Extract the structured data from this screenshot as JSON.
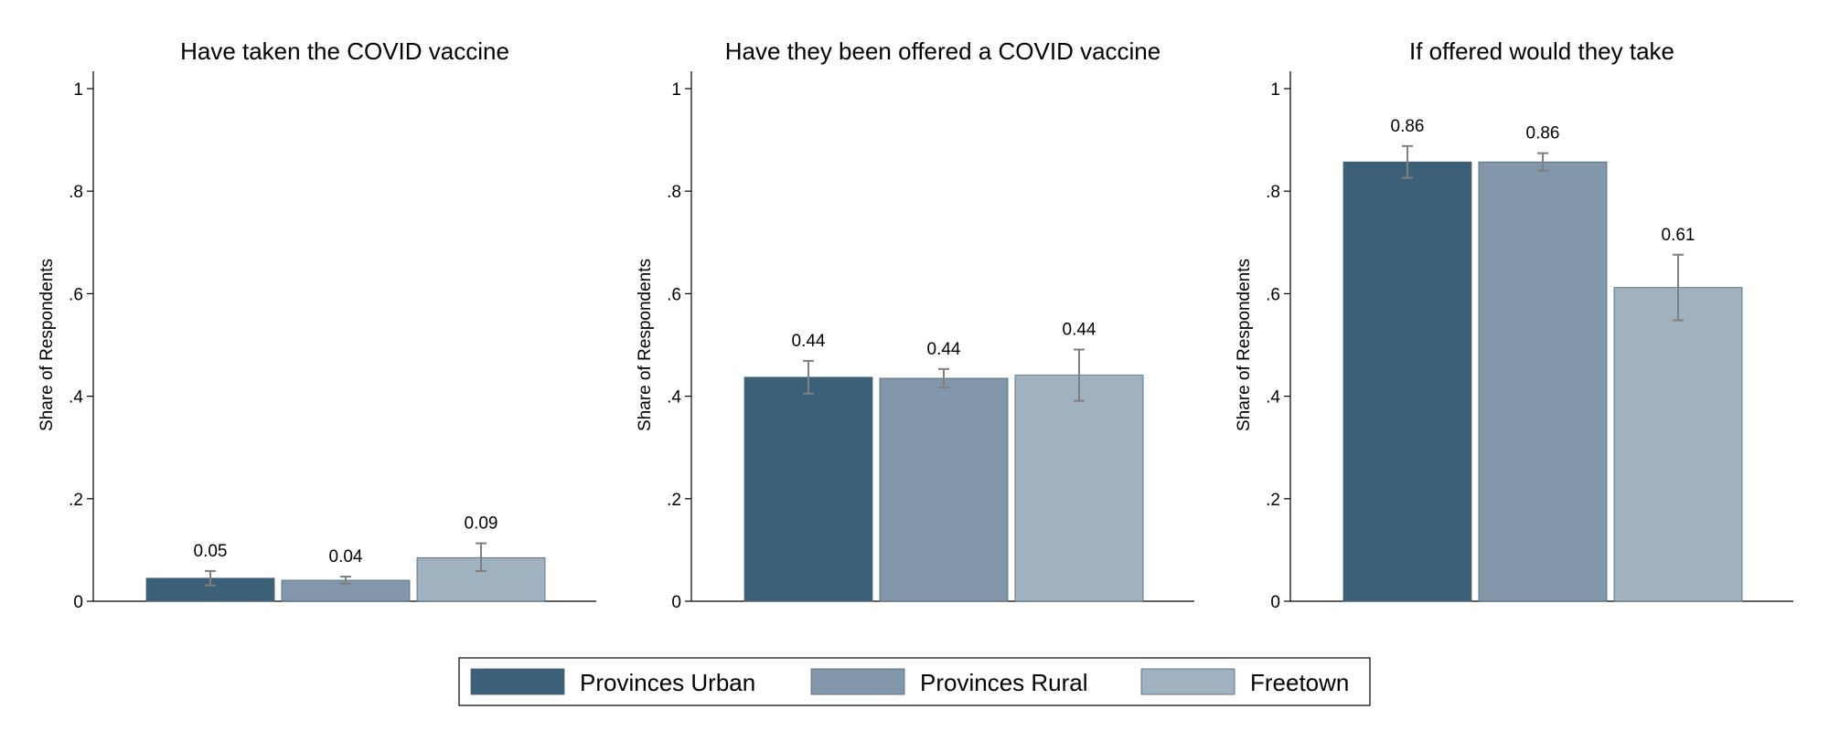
{
  "chart_data": {
    "type": "bar",
    "ylabel": "Share of Respondents",
    "ylim": [
      0,
      1
    ],
    "yticks": [
      {
        "value": 0,
        "label": "0"
      },
      {
        "value": 0.2,
        "label": ".2"
      },
      {
        "value": 0.4,
        "label": ".4"
      },
      {
        "value": 0.6,
        "label": ".6"
      },
      {
        "value": 0.8,
        "label": ".8"
      },
      {
        "value": 1,
        "label": "1"
      }
    ],
    "legend": {
      "position": "bottom",
      "entries": [
        "Provinces Urban",
        "Provinces Rural",
        "Freetown"
      ]
    },
    "colors": [
      "#3d6079",
      "#8397ab",
      "#a0b1c0"
    ],
    "error_bar_color": "#7f7f7f",
    "grid": false,
    "panels": [
      {
        "title": "Have taken the COVID vaccine",
        "series": [
          {
            "name": "Provinces Urban",
            "value": 0.045,
            "ci": [
              0.031,
              0.059
            ],
            "label": "0.05"
          },
          {
            "name": "Provinces Rural",
            "value": 0.041,
            "ci": [
              0.034,
              0.048
            ],
            "label": "0.04"
          },
          {
            "name": "Freetown",
            "value": 0.085,
            "ci": [
              0.059,
              0.113
            ],
            "label": "0.09"
          }
        ]
      },
      {
        "title": "Have they been offered a COVID vaccine",
        "series": [
          {
            "name": "Provinces Urban",
            "value": 0.437,
            "ci": [
              0.405,
              0.469
            ],
            "label": "0.44"
          },
          {
            "name": "Provinces Rural",
            "value": 0.435,
            "ci": [
              0.417,
              0.453
            ],
            "label": "0.44"
          },
          {
            "name": "Freetown",
            "value": 0.441,
            "ci": [
              0.391,
              0.491
            ],
            "label": "0.44"
          }
        ]
      },
      {
        "title": "If offered would they take",
        "series": [
          {
            "name": "Provinces Urban",
            "value": 0.857,
            "ci": [
              0.826,
              0.888
            ],
            "label": "0.86"
          },
          {
            "name": "Provinces Rural",
            "value": 0.857,
            "ci": [
              0.84,
              0.874
            ],
            "label": "0.86"
          },
          {
            "name": "Freetown",
            "value": 0.612,
            "ci": [
              0.548,
              0.676
            ],
            "label": "0.61"
          }
        ]
      }
    ]
  }
}
